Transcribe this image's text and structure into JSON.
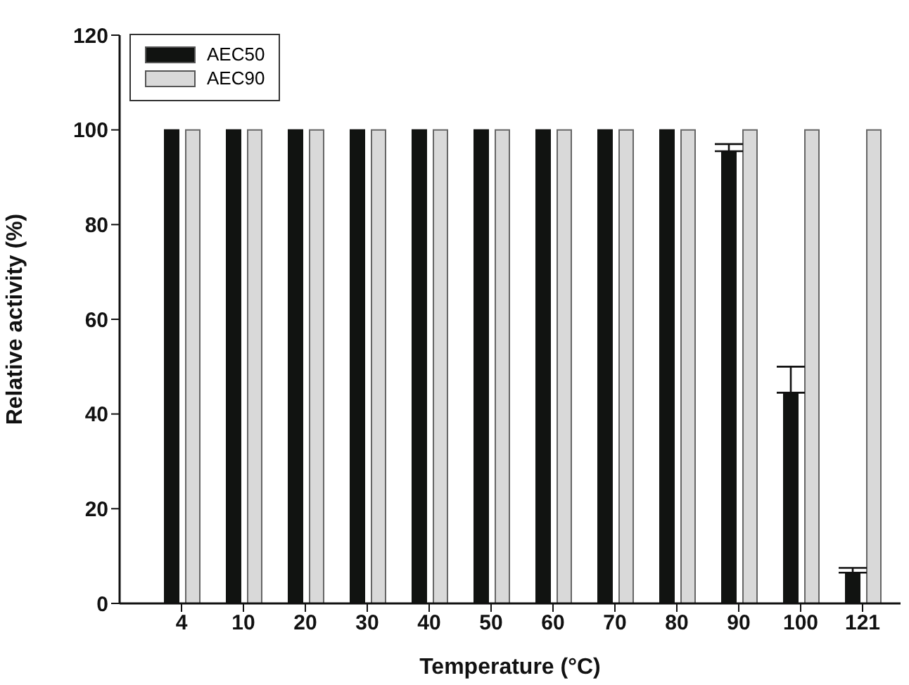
{
  "chart_data": {
    "type": "bar",
    "xlabel": "Temperature (°C)",
    "ylabel": "Relative activity (%)",
    "categories": [
      "4",
      "10",
      "20",
      "30",
      "40",
      "50",
      "60",
      "70",
      "80",
      "90",
      "100",
      "121"
    ],
    "series": [
      {
        "name": "AEC50",
        "color": "#111311",
        "values": [
          100,
          100,
          100,
          100,
          100,
          100,
          100,
          100,
          100,
          95.5,
          44.5,
          6.5
        ],
        "errors": [
          null,
          null,
          null,
          null,
          null,
          null,
          null,
          null,
          null,
          [
            95.5,
            97
          ],
          [
            44.5,
            50
          ],
          [
            6.5,
            7.5
          ]
        ]
      },
      {
        "name": "AEC90",
        "color": "#d9d9d9",
        "values": [
          100,
          100,
          100,
          100,
          100,
          100,
          100,
          100,
          100,
          100,
          100,
          100
        ]
      }
    ],
    "ylim": [
      0,
      120
    ],
    "yticks": [
      0,
      20,
      40,
      60,
      80,
      100,
      120
    ],
    "grid": false,
    "legend": "top left"
  }
}
